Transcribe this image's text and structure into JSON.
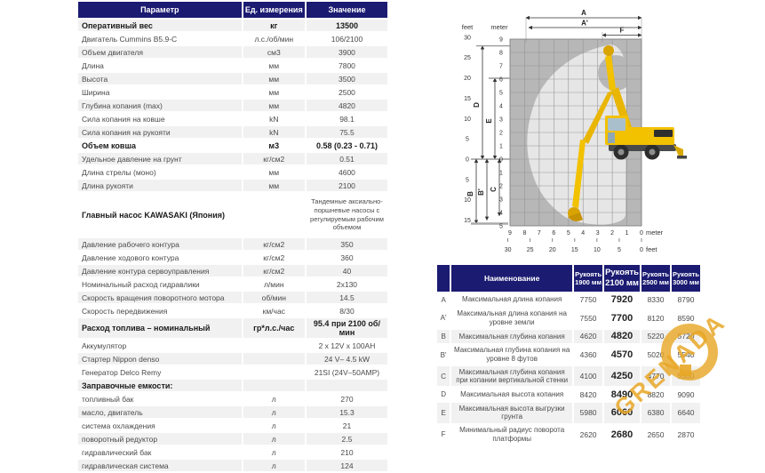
{
  "colors": {
    "header_navy": "#1b1b72",
    "row_stripe": "#f1f1f1",
    "machine_yellow": "#f2c100",
    "watermark_gold": "#e8a727",
    "grid_gray": "#b7b7b7",
    "envelope_gray": "#e6e6e6"
  },
  "spec_table": {
    "headers": [
      "Параметр",
      "Ед. измерения",
      "Значение"
    ],
    "rows": [
      {
        "param": "Оперативный вес",
        "unit": "кг",
        "value": "13500",
        "bold": true
      },
      {
        "param": "Двигатель Cummins B5.9-C",
        "unit": "л.с./об/мин",
        "value": "106/2100"
      },
      {
        "param": "Объем двигателя",
        "unit": "см3",
        "value": "3900"
      },
      {
        "param": "Длина",
        "unit": "мм",
        "value": "7800"
      },
      {
        "param": "Высота",
        "unit": "мм",
        "value": "3500"
      },
      {
        "param": "Ширина",
        "unit": "мм",
        "value": "2500"
      },
      {
        "param": "Глубина копания (max)",
        "unit": "мм",
        "value": "4820"
      },
      {
        "param": "Сила копания на ковше",
        "unit": "kN",
        "value": "98.1"
      },
      {
        "param": "Сила копания на рукояти",
        "unit": "kN",
        "value": "75.5"
      },
      {
        "param": "Объем ковша",
        "unit": "м3",
        "value": "0.58 (0.23 - 0.71)",
        "bold": true
      },
      {
        "param": "Удельное давление на грунт",
        "unit": "кг/см2",
        "value": "0.51"
      },
      {
        "param": "Длина стрелы (моно)",
        "unit": "мм",
        "value": "4600"
      },
      {
        "param": "Длина рукояти",
        "unit": "мм",
        "value": "2100"
      },
      {
        "param": "Главный насос KAWASAKI (Япония)",
        "unit": "",
        "value": "Тандемные аксиально-поршневые насосы с регулируемым рабочим объемом",
        "bold": true,
        "tall": true
      },
      {
        "param": "Давление рабочего контура",
        "unit": "кг/см2",
        "value": "350"
      },
      {
        "param": "Давление ходового контура",
        "unit": "кг/см2",
        "value": "360"
      },
      {
        "param": "Давление контура сервоуправления",
        "unit": "кг/см2",
        "value": "40"
      },
      {
        "param": "Номинальный расход гидравлики",
        "unit": "л/мин",
        "value": "2x130"
      },
      {
        "param": "Скорость вращения поворотного мотора",
        "unit": "об/мин",
        "value": "14.5"
      },
      {
        "param": "Скорость передвижения",
        "unit": "км/час",
        "value": "8/30"
      },
      {
        "param": "Расход топлива – номинальный",
        "unit": "гр*л.с./час",
        "value": "95.4 при 2100 об/мин",
        "bold": true
      },
      {
        "param": "Аккумулятор",
        "unit": "",
        "value": "2 x 12V x 100AH"
      },
      {
        "param": "Стартер Nippon denso",
        "unit": "",
        "value": "24 V– 4.5 kW"
      },
      {
        "param": "Генератор Delco Remy",
        "unit": "",
        "value": "21SI (24V–50AMP)"
      },
      {
        "param": "Заправочные емкости:",
        "unit": "",
        "value": "",
        "bold": true
      },
      {
        "param": "топливный бак",
        "unit": "л",
        "value": "270"
      },
      {
        "param": "масло, двигатель",
        "unit": "л",
        "value": "15.3"
      },
      {
        "param": "система охлаждения",
        "unit": "л",
        "value": "21"
      },
      {
        "param": "поворотный редуктор",
        "unit": "л",
        "value": "2.5"
      },
      {
        "param": "гидравлический бак",
        "unit": "л",
        "value": "210"
      },
      {
        "param": "гидравлическая система",
        "unit": "л",
        "value": "124"
      }
    ]
  },
  "diagram": {
    "top_feet_label": "feet",
    "top_meter_label": "meter",
    "left_feet_ticks": [
      "30",
      "25",
      "20",
      "15",
      "10",
      "5",
      "0",
      "5",
      "10",
      "15"
    ],
    "left_meter_ticks": [
      "9",
      "8",
      "7",
      "6",
      "5",
      "4",
      "3",
      "2",
      "1",
      "0",
      "1",
      "2",
      "3",
      "4",
      "5"
    ],
    "bottom_meter_ticks": [
      "9",
      "8",
      "7",
      "6",
      "5",
      "4",
      "3",
      "2",
      "1",
      "0"
    ],
    "bottom_feet_ticks": [
      "30",
      "25",
      "20",
      "15",
      "10",
      "5",
      "0"
    ],
    "bottom_meter_label": "meter",
    "bottom_feet_label": "feet",
    "dims": {
      "A": "A",
      "A2": "A'",
      "F": "F",
      "D": "D",
      "E": "E",
      "B": "B",
      "B2": "B'",
      "C": "C"
    }
  },
  "range_table": {
    "key_header": "",
    "name_header": "Наименование",
    "arm_headers": [
      {
        "line1": "Рукоять",
        "line2": "1900 мм",
        "highlight": false
      },
      {
        "line1": "Рукоять",
        "line2": "2100 мм",
        "highlight": true
      },
      {
        "line1": "Рукоять",
        "line2": "2500 мм",
        "highlight": false
      },
      {
        "line1": "Рукоять",
        "line2": "3000 мм",
        "highlight": false
      }
    ],
    "rows": [
      {
        "key": "A",
        "name": "Максимальная длина копания",
        "values": [
          "7750",
          "7920",
          "8330",
          "8790"
        ]
      },
      {
        "key": "A'",
        "name": "Максимальная длина копания на уровне земли",
        "values": [
          "7550",
          "7700",
          "8120",
          "8590"
        ]
      },
      {
        "key": "B",
        "name": "Максимальная глубина копания",
        "values": [
          "4620",
          "4820",
          "5220",
          "5720"
        ]
      },
      {
        "key": "B'",
        "name": "Максимальная глубина копания на уровне 8 футов",
        "values": [
          "4360",
          "4570",
          "5020",
          "5540"
        ]
      },
      {
        "key": "C",
        "name": "Максимальная глубина копания при копании вертикальной стенки",
        "values": [
          "4100",
          "4250",
          "4770",
          "5300"
        ]
      },
      {
        "key": "D",
        "name": "Максимальная высота копания",
        "values": [
          "8420",
          "8490",
          "8820",
          "9090"
        ]
      },
      {
        "key": "E",
        "name": "Максимальная высота выгрузки грунта",
        "values": [
          "5980",
          "6060",
          "6380",
          "6640"
        ]
      },
      {
        "key": "F",
        "name": "Минимальный радиус поворота платформы",
        "values": [
          "2620",
          "2680",
          "2650",
          "2870"
        ]
      }
    ]
  },
  "watermark": {
    "text": "GRENADA"
  }
}
